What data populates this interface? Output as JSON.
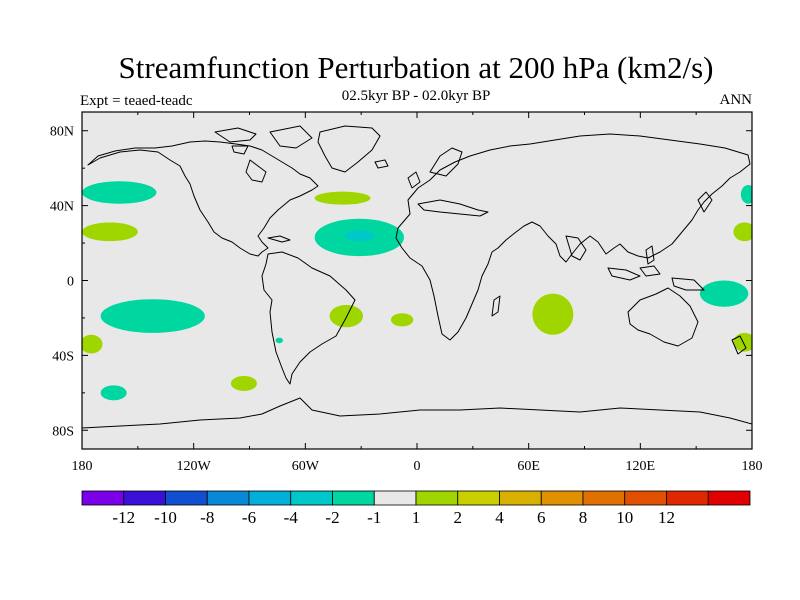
{
  "title": "Streamfunction Perturbation at 200 hPa (km2/s)",
  "subtitle": "02.5kyr BP - 02.0kyr BP",
  "left_string": "Expt = teaed-teadc",
  "right_string": "ANN",
  "map": {
    "projection": "cylindrical-equidistant",
    "lon_range": [
      -180,
      180
    ],
    "lat_range": [
      -90,
      90
    ],
    "background_color": "#e8e8e8",
    "coastline_color": "#000000",
    "lon_ticks": [
      {
        "value": -180,
        "label": "180"
      },
      {
        "value": -120,
        "label": "120W"
      },
      {
        "value": -60,
        "label": "60W"
      },
      {
        "value": 0,
        "label": "0"
      },
      {
        "value": 60,
        "label": "60E"
      },
      {
        "value": 120,
        "label": "120E"
      },
      {
        "value": 180,
        "label": "180"
      }
    ],
    "lat_ticks": [
      {
        "value": 80,
        "label": "80N"
      },
      {
        "value": 40,
        "label": "40N"
      },
      {
        "value": 0,
        "label": "0"
      },
      {
        "value": -40,
        "label": "40S"
      },
      {
        "value": -80,
        "label": "80S"
      }
    ],
    "anomalies": [
      {
        "lon": -160,
        "lat": 47,
        "rlon": 20,
        "rlat": 6,
        "level": -2,
        "color": "#00d6a0"
      },
      {
        "lon": -165,
        "lat": 26,
        "rlon": 15,
        "rlat": 5,
        "level": 1,
        "color": "#a0d600"
      },
      {
        "lon": -142,
        "lat": -19,
        "rlon": 28,
        "rlat": 9,
        "level": -2,
        "color": "#00d6a0"
      },
      {
        "lon": -175,
        "lat": -34,
        "rlon": 6,
        "rlat": 5,
        "level": 1,
        "color": "#a0d600"
      },
      {
        "lon": -163,
        "lat": -60,
        "rlon": 7,
        "rlat": 4,
        "level": -2,
        "color": "#00d6a0"
      },
      {
        "lon": -93,
        "lat": -55,
        "rlon": 7,
        "rlat": 4,
        "level": 1,
        "color": "#a0d600"
      },
      {
        "lon": -40,
        "lat": 44,
        "rlon": 15,
        "rlat": 3.5,
        "level": 1,
        "color": "#a0d600"
      },
      {
        "lon": -31,
        "lat": 23,
        "rlon": 24,
        "rlat": 10,
        "level": -2,
        "color": "#00d6a0"
      },
      {
        "lon": -31,
        "lat": 24,
        "rlon": 8,
        "rlat": 3,
        "level": -4,
        "color": "#00c8c8"
      },
      {
        "lon": -38,
        "lat": -19,
        "rlon": 9,
        "rlat": 6,
        "level": 1,
        "color": "#a0d600"
      },
      {
        "lon": -8,
        "lat": -21,
        "rlon": 6,
        "rlat": 3.5,
        "level": 1,
        "color": "#a0d600"
      },
      {
        "lon": 73,
        "lat": -18,
        "rlon": 11,
        "rlat": 11,
        "level": 1,
        "color": "#a0d600"
      },
      {
        "lon": 165,
        "lat": -7,
        "rlon": 13,
        "rlat": 7,
        "level": -2,
        "color": "#00d6a0"
      },
      {
        "lon": 176,
        "lat": 26,
        "rlon": 6,
        "rlat": 5,
        "level": 1,
        "color": "#a0d600"
      },
      {
        "lon": 178,
        "lat": 46,
        "rlon": 4,
        "rlat": 5,
        "level": -2,
        "color": "#00d6a0"
      },
      {
        "lon": 176,
        "lat": -33,
        "rlon": 6,
        "rlat": 5,
        "level": 1,
        "color": "#a0d600"
      },
      {
        "lon": -74,
        "lat": -32,
        "rlon": 2,
        "rlat": 1.5,
        "level": -2,
        "color": "#00d6a0"
      }
    ]
  },
  "colorbar": {
    "colors": [
      "#7a00e8",
      "#3a10d8",
      "#1050d0",
      "#0a88d8",
      "#00b0d8",
      "#00c8c8",
      "#00d6a0",
      "#e8e8e8",
      "#a0d600",
      "#c8d000",
      "#d8b000",
      "#e09000",
      "#e07000",
      "#e05000",
      "#e02800",
      "#e00000"
    ],
    "labels": [
      "-12",
      "-10",
      "-8",
      "-6",
      "-4",
      "-2",
      "-1",
      "1",
      "2",
      "4",
      "6",
      "8",
      "10",
      "12"
    ]
  }
}
